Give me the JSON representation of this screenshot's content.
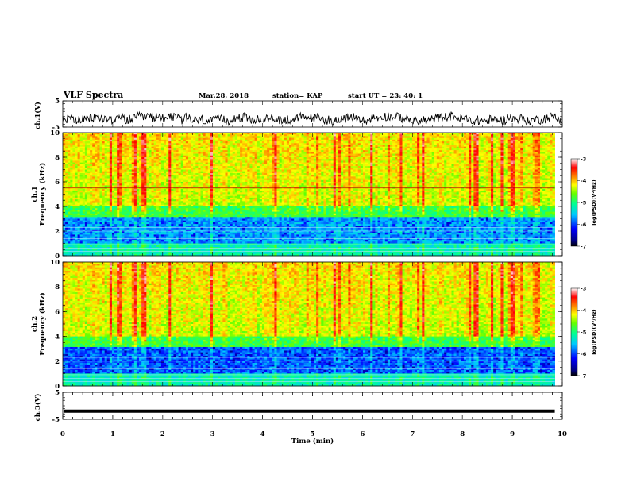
{
  "header": {
    "title": "VLF Spectra",
    "date": "Mar.28, 2018",
    "station": "station= KAP",
    "start": "start  UT =   23: 40: 1"
  },
  "chart_data": [
    {
      "type": "line",
      "panel": "ch.1 waveform",
      "ylabel": "ch.1(V)",
      "y_ticks": [
        "5",
        "-5"
      ],
      "ylim": [
        -5,
        5
      ],
      "xlim": [
        0,
        10
      ],
      "approx_level": -2
    },
    {
      "type": "heatmap",
      "panel": "ch.1 spectrogram",
      "ylabel": "ch.1\nFrequency (kHz)",
      "y_ticks": [
        "0",
        "2",
        "4",
        "6",
        "8",
        "10"
      ],
      "ylim": [
        0,
        10
      ],
      "xlim": [
        0,
        10
      ],
      "colorbar": {
        "label": "log(PSD)(V²/Hz)",
        "ticks": [
          "-3",
          "-4",
          "-5",
          "-6",
          "-7"
        ],
        "range": [
          -7,
          -3
        ]
      },
      "features": {
        "horizontal_line_khz": 5.5,
        "low_band_khz": [
          1,
          3
        ]
      }
    },
    {
      "type": "heatmap",
      "panel": "ch.2 spectrogram",
      "ylabel": "ch.2\nFrequency (kHz)",
      "y_ticks": [
        "0",
        "2",
        "4",
        "6",
        "8",
        "10"
      ],
      "ylim": [
        0,
        10
      ],
      "xlim": [
        0,
        10
      ],
      "colorbar": {
        "label": "log(PSD)(V²/Hz)",
        "ticks": [
          "-3",
          "-4",
          "-5",
          "-6",
          "-7"
        ],
        "range": [
          -7,
          -3
        ]
      },
      "features": {
        "low_band_khz": [
          1,
          3
        ]
      }
    },
    {
      "type": "line",
      "panel": "ch.3 waveform",
      "ylabel": "ch.3(V)",
      "y_ticks": [
        "5",
        "-5"
      ],
      "ylim": [
        -5,
        5
      ],
      "xlim": [
        0,
        10
      ],
      "approx_level": -2
    }
  ],
  "xaxis": {
    "label": "Time (min)",
    "ticks": [
      "0",
      "1",
      "2",
      "3",
      "4",
      "5",
      "6",
      "7",
      "8",
      "9",
      "10"
    ]
  },
  "colors": {
    "background": "#ffffff",
    "trace": "#000000",
    "colormap": [
      "#000000",
      "#00007f",
      "#0000ff",
      "#00c8ff",
      "#00ff96",
      "#64ff00",
      "#ffff00",
      "#ff7f00",
      "#ff0000",
      "#ffffff"
    ]
  }
}
